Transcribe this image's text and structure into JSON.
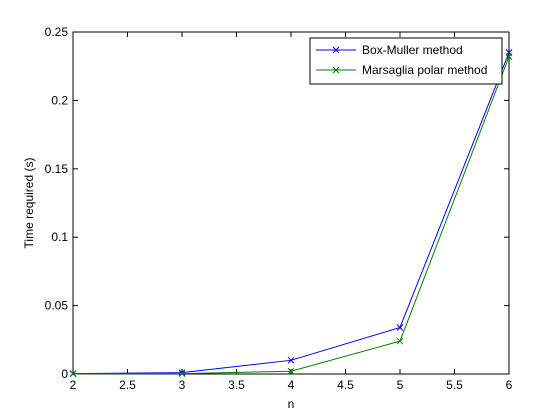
{
  "chart_data": {
    "type": "line",
    "title": "",
    "xlabel": "n",
    "ylabel": "Time required (s)",
    "xlim": [
      2,
      6
    ],
    "ylim": [
      0,
      0.25
    ],
    "x_ticks": [
      "2",
      "2.5",
      "3",
      "3.5",
      "4",
      "4.5",
      "5",
      "5.5",
      "6"
    ],
    "y_ticks": [
      "0",
      "0.05",
      "0.1",
      "0.15",
      "0.2",
      "0.25"
    ],
    "grid": false,
    "legend_position": "top-right",
    "series": [
      {
        "name": "Box-Muller method",
        "color": "#0000ff",
        "marker": "x",
        "x": [
          2,
          3,
          4,
          5,
          6
        ],
        "y": [
          0.0003,
          0.001,
          0.01,
          0.034,
          0.235
        ]
      },
      {
        "name": "Marsaglia polar method",
        "color": "#008000",
        "marker": "x",
        "x": [
          2,
          3,
          4,
          5,
          6
        ],
        "y": [
          0.0001,
          0.0003,
          0.002,
          0.024,
          0.232
        ]
      }
    ]
  }
}
